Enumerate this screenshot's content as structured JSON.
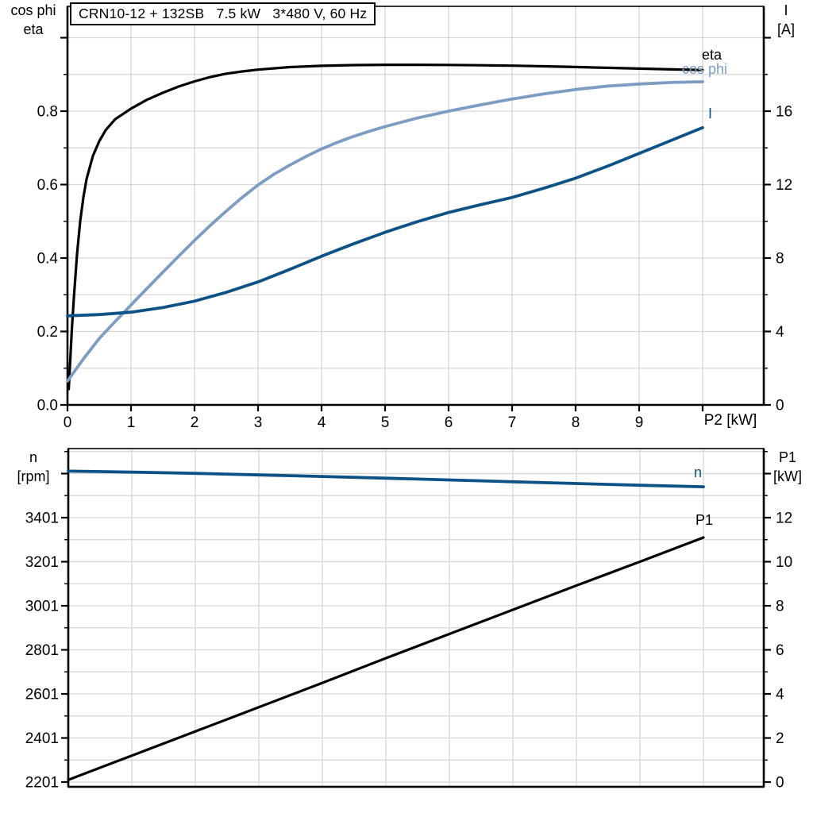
{
  "colors": {
    "black": "#000000",
    "light_blue": "#7d9cc3",
    "dark_blue": "#0d5287",
    "grid": "#d6d6d6",
    "background": "#ffffff"
  },
  "chart_data": [
    {
      "type": "line",
      "title": "CRN10-12 + 132SB   7.5 kW   3*480 V, 60 Hz",
      "x_axis": {
        "title": "P2 [kW]",
        "range": [
          0,
          10.9625
        ],
        "tick_values": [
          0,
          1,
          2,
          3,
          4,
          5,
          6,
          7,
          8,
          9,
          10
        ],
        "tick_labels": [
          "0",
          "1",
          "2",
          "3",
          "4",
          "5",
          "6",
          "7",
          "8",
          "9",
          ""
        ],
        "gridline_values": [
          1,
          2,
          3,
          4,
          5,
          6,
          7,
          8,
          9,
          10
        ]
      },
      "left_axis": {
        "title_lines": [
          "cos phi",
          "eta"
        ],
        "range": [
          0,
          1.0854
        ],
        "tick_base": 0,
        "minor_step": 0.1,
        "major_step": 0.2,
        "labels": [
          "0.0",
          "0.2",
          "0.4",
          "0.6",
          "0.8"
        ],
        "label_values": [
          0,
          0.2,
          0.4,
          0.6,
          0.8
        ]
      },
      "right_axis": {
        "title_lines": [
          "I",
          "[A]"
        ],
        "range": [
          0,
          21.708
        ],
        "tick_base": 0,
        "minor_step": 2,
        "major_step": 4,
        "labels": [
          "0",
          "4",
          "8",
          "12",
          "16"
        ],
        "label_values": [
          0,
          4,
          8,
          12,
          16
        ]
      },
      "series": [
        {
          "name": "eta",
          "axis": "left",
          "color_key": "black",
          "points": [
            [
              0.02,
              0.043
            ],
            [
              0.04,
              0.11
            ],
            [
              0.07,
              0.21
            ],
            [
              0.1,
              0.29
            ],
            [
              0.15,
              0.41
            ],
            [
              0.2,
              0.5
            ],
            [
              0.25,
              0.565
            ],
            [
              0.3,
              0.615
            ],
            [
              0.4,
              0.678
            ],
            [
              0.5,
              0.718
            ],
            [
              0.6,
              0.748
            ],
            [
              0.75,
              0.778
            ],
            [
              1,
              0.807
            ],
            [
              1.25,
              0.831
            ],
            [
              1.5,
              0.85
            ],
            [
              1.75,
              0.867
            ],
            [
              2,
              0.881
            ],
            [
              2.25,
              0.893
            ],
            [
              2.5,
              0.902
            ],
            [
              2.75,
              0.908
            ],
            [
              3,
              0.913
            ],
            [
              3.5,
              0.92
            ],
            [
              4,
              0.9235
            ],
            [
              4.5,
              0.9255
            ],
            [
              5,
              0.9262
            ],
            [
              5.5,
              0.9263
            ],
            [
              6,
              0.9258
            ],
            [
              6.5,
              0.925
            ],
            [
              7,
              0.9238
            ],
            [
              7.5,
              0.9222
            ],
            [
              8,
              0.9203
            ],
            [
              8.5,
              0.918
            ],
            [
              9,
              0.9158
            ],
            [
              9.5,
              0.9138
            ],
            [
              10,
              0.912
            ]
          ]
        },
        {
          "name": "cos phi",
          "axis": "left",
          "color_key": "light_blue",
          "points": [
            [
              0,
              0.065
            ],
            [
              0.25,
              0.125
            ],
            [
              0.5,
              0.181
            ],
            [
              0.75,
              0.227
            ],
            [
              1,
              0.272
            ],
            [
              1.25,
              0.317
            ],
            [
              1.5,
              0.361
            ],
            [
              1.75,
              0.405
            ],
            [
              2,
              0.448
            ],
            [
              2.25,
              0.489
            ],
            [
              2.5,
              0.528
            ],
            [
              2.75,
              0.565
            ],
            [
              3,
              0.599
            ],
            [
              3.25,
              0.628
            ],
            [
              3.5,
              0.653
            ],
            [
              3.75,
              0.676
            ],
            [
              4,
              0.697
            ],
            [
              4.25,
              0.715
            ],
            [
              4.5,
              0.731
            ],
            [
              4.75,
              0.745
            ],
            [
              5,
              0.758
            ],
            [
              5.5,
              0.781
            ],
            [
              6,
              0.8
            ],
            [
              6.5,
              0.817
            ],
            [
              7,
              0.833
            ],
            [
              7.5,
              0.847
            ],
            [
              8,
              0.859
            ],
            [
              8.5,
              0.868
            ],
            [
              9,
              0.874
            ],
            [
              9.5,
              0.878
            ],
            [
              10,
              0.88
            ]
          ]
        },
        {
          "name": "I",
          "axis": "right",
          "color_key": "dark_blue",
          "points": [
            [
              0,
              4.85
            ],
            [
              0.5,
              4.92
            ],
            [
              1,
              5.05
            ],
            [
              1.5,
              5.3
            ],
            [
              2,
              5.65
            ],
            [
              2.5,
              6.13
            ],
            [
              3,
              6.7
            ],
            [
              3.5,
              7.38
            ],
            [
              4,
              8.1
            ],
            [
              4.5,
              8.77
            ],
            [
              5,
              9.4
            ],
            [
              5.5,
              9.97
            ],
            [
              6,
              10.48
            ],
            [
              6.5,
              10.9
            ],
            [
              7,
              11.3
            ],
            [
              7.5,
              11.8
            ],
            [
              8,
              12.35
            ],
            [
              8.5,
              13.0
            ],
            [
              9,
              13.7
            ],
            [
              9.5,
              14.4
            ],
            [
              10,
              15.1
            ]
          ]
        }
      ]
    },
    {
      "type": "line",
      "title": "",
      "x_axis": {
        "title": "",
        "range": [
          0,
          10.95
        ],
        "tick_values": [],
        "tick_labels": [],
        "gridline_values": [
          1,
          2,
          3,
          4,
          5,
          6,
          7,
          8,
          9,
          10
        ]
      },
      "left_axis": {
        "title_lines": [
          "n",
          "[rpm]"
        ],
        "range": [
          2179.4,
          3714.5
        ],
        "tick_base": 2201,
        "minor_step": 100,
        "major_step": 200,
        "labels": [
          "2201",
          "2401",
          "2601",
          "2801",
          "3001",
          "3201",
          "3401"
        ],
        "label_values": [
          2201,
          2401,
          2601,
          2801,
          3001,
          3201,
          3401
        ]
      },
      "right_axis": {
        "title_lines": [
          "P1",
          "[kW]"
        ],
        "range": [
          -0.216,
          15.135
        ],
        "tick_base": 0,
        "minor_step": 1,
        "major_step": 2,
        "labels": [
          "0",
          "2",
          "4",
          "6",
          "8",
          "10",
          "12"
        ],
        "label_values": [
          0,
          2,
          4,
          6,
          8,
          10,
          12
        ]
      },
      "series": [
        {
          "name": "n",
          "axis": "left",
          "color_key": "dark_blue",
          "points": [
            [
              0,
              3612
            ],
            [
              1,
              3608
            ],
            [
              2,
              3602
            ],
            [
              3,
              3595
            ],
            [
              4,
              3588
            ],
            [
              5,
              3580
            ],
            [
              6,
              3572
            ],
            [
              7,
              3564
            ],
            [
              8,
              3556
            ],
            [
              9,
              3548
            ],
            [
              10,
              3541
            ]
          ]
        },
        {
          "name": "P1",
          "axis": "right",
          "color_key": "black",
          "points": [
            [
              0,
              0.1
            ],
            [
              1,
              1.2
            ],
            [
              2,
              2.3
            ],
            [
              3,
              3.4
            ],
            [
              4,
              4.5
            ],
            [
              5,
              5.62
            ],
            [
              6,
              6.72
            ],
            [
              7,
              7.82
            ],
            [
              8,
              8.92
            ],
            [
              9,
              10.0
            ],
            [
              10,
              11.1
            ]
          ]
        }
      ]
    }
  ]
}
